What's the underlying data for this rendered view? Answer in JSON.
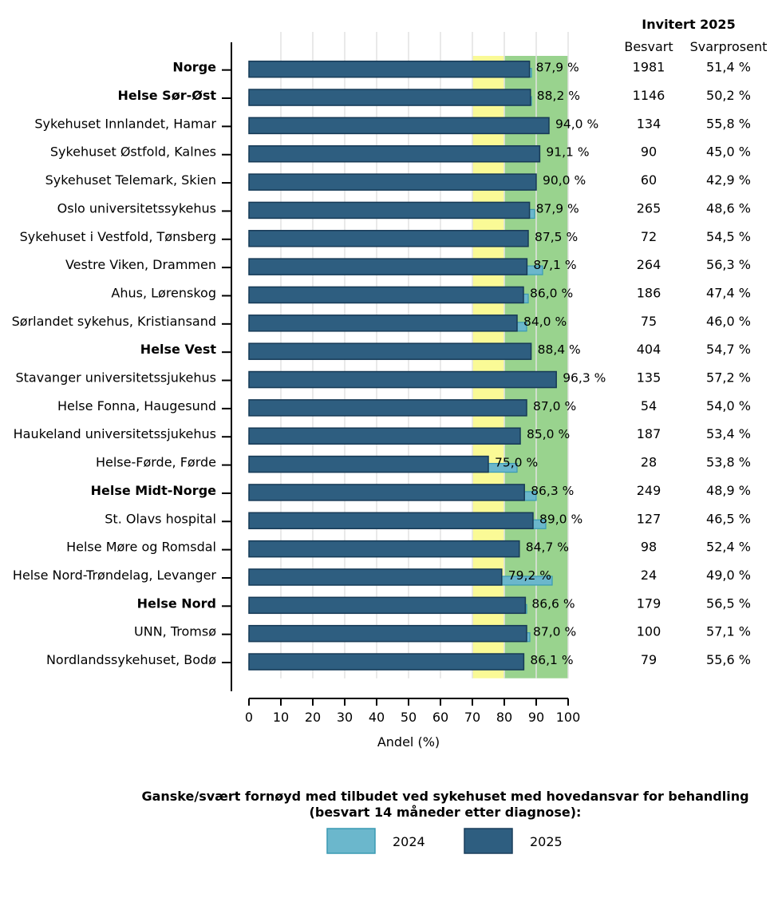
{
  "chart_data": {
    "type": "bar",
    "orientation": "horizontal",
    "categories": [
      {
        "label": "Norge",
        "bold": true
      },
      {
        "label": "Helse Sør-Øst",
        "bold": true
      },
      {
        "label": "Sykehuset Innlandet, Hamar",
        "bold": false
      },
      {
        "label": "Sykehuset Østfold, Kalnes",
        "bold": false
      },
      {
        "label": "Sykehuset Telemark, Skien",
        "bold": false
      },
      {
        "label": "Oslo universitetssykehus",
        "bold": false
      },
      {
        "label": "Sykehuset i Vestfold, Tønsberg",
        "bold": false
      },
      {
        "label": "Vestre Viken, Drammen",
        "bold": false
      },
      {
        "label": "Ahus, Lørenskog",
        "bold": false
      },
      {
        "label": "Sørlandet sykehus, Kristiansand",
        "bold": false
      },
      {
        "label": "Helse Vest",
        "bold": true
      },
      {
        "label": "Stavanger universitetssjukehus",
        "bold": false
      },
      {
        "label": "Helse Fonna, Haugesund",
        "bold": false
      },
      {
        "label": "Haukeland universitetssjukehus",
        "bold": false
      },
      {
        "label": "Helse-Førde, Førde",
        "bold": false
      },
      {
        "label": "Helse Midt-Norge",
        "bold": true
      },
      {
        "label": "St. Olavs hospital",
        "bold": false
      },
      {
        "label": "Helse Møre og Romsdal",
        "bold": false
      },
      {
        "label": "Helse Nord-Trøndelag, Levanger",
        "bold": false
      },
      {
        "label": "Helse Nord",
        "bold": true
      },
      {
        "label": "UNN, Tromsø",
        "bold": false
      },
      {
        "label": "Nordlandssykehuset, Bodø",
        "bold": false
      }
    ],
    "series": [
      {
        "name": "2024",
        "color": "#6bb7cc",
        "values": [
          88.5,
          88.5,
          89.5,
          84.0,
          87.0,
          89.5,
          81.5,
          92.0,
          87.5,
          87.0,
          87.5,
          92.5,
          86.5,
          85.0,
          84.0,
          90.0,
          93.0,
          84.0,
          95.0,
          87.0,
          88.0,
          86.0
        ]
      },
      {
        "name": "2025",
        "color": "#2e5e80",
        "values": [
          87.9,
          88.2,
          94.0,
          91.1,
          90.0,
          87.9,
          87.5,
          87.1,
          86.0,
          84.0,
          88.4,
          96.3,
          87.0,
          85.0,
          75.0,
          86.3,
          89.0,
          84.7,
          79.2,
          86.6,
          87.0,
          86.1
        ]
      }
    ],
    "value_labels": [
      "87,9 %",
      "88,2 %",
      "94,0 %",
      "91,1 %",
      "90,0 %",
      "87,9 %",
      "87,5 %",
      "87,1 %",
      "86,0 %",
      "84,0 %",
      "88,4 %",
      "96,3 %",
      "87,0 %",
      "85,0 %",
      "75,0 %",
      "86,3 %",
      "89,0 %",
      "84,7 %",
      "79,2 %",
      "86,6 %",
      "87,0 %",
      "86,1 %"
    ],
    "target_bands": [
      {
        "from": 70,
        "to": 80,
        "color": "#fafa96"
      },
      {
        "from": 80,
        "to": 100,
        "color": "#99d38e"
      }
    ],
    "xlabel": "Andel (%)",
    "xlim": [
      0,
      100
    ],
    "xticks": [
      0,
      10,
      20,
      30,
      40,
      50,
      60,
      70,
      80,
      90,
      100
    ],
    "grid": "vertical",
    "table": {
      "title": "Invitert 2025",
      "columns": [
        "Besvart",
        "Svarprosent"
      ],
      "besvart": [
        "1981",
        "1146",
        "134",
        "90",
        "60",
        "265",
        "72",
        "264",
        "186",
        "75",
        "404",
        "135",
        "54",
        "187",
        "28",
        "249",
        "127",
        "98",
        "24",
        "179",
        "100",
        "79"
      ],
      "svarprosent": [
        "51,4 %",
        "50,2 %",
        "55,8 %",
        "45,0 %",
        "42,9 %",
        "48,6 %",
        "54,5 %",
        "56,3 %",
        "47,4 %",
        "46,0 %",
        "54,7 %",
        "57,2 %",
        "54,0 %",
        "53,4 %",
        "53,8 %",
        "48,9 %",
        "46,5 %",
        "52,4 %",
        "49,0 %",
        "56,5 %",
        "57,1 %",
        "55,6 %"
      ]
    },
    "legend": {
      "title_line1": "Ganske/svært fornøyd med tilbudet ved sykehuset med hovedansvar for behandling",
      "title_line2": "(besvart 14 måneder etter diagnose):",
      "placement": "bottom"
    }
  }
}
